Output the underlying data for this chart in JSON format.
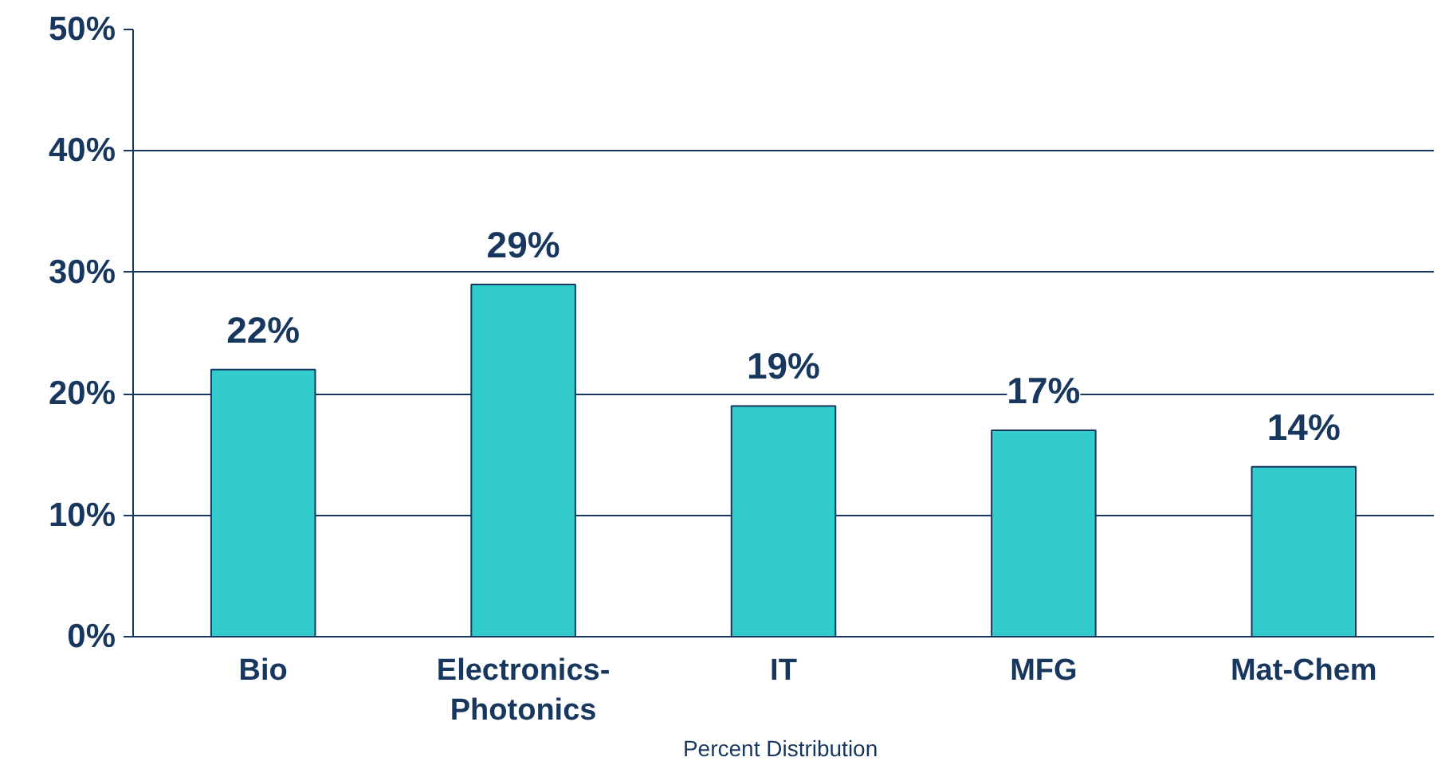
{
  "chart_data": {
    "type": "bar",
    "xlabel": "Percent  Distribution",
    "categories": [
      "Bio",
      "Electronics-Photonics",
      "IT",
      "MFG",
      "Mat-Chem"
    ],
    "values": [
      22,
      29,
      19,
      17,
      14
    ],
    "value_labels": [
      "22%",
      "29%",
      "19%",
      "17%",
      "14%"
    ],
    "color": "#33cccc",
    "ylim": [
      0,
      50
    ],
    "yticks": [
      {
        "value": 0,
        "label": "0%"
      },
      {
        "value": 10,
        "label": "10%"
      },
      {
        "value": 20,
        "label": "20%"
      },
      {
        "value": 30,
        "label": "30%"
      },
      {
        "value": 40,
        "label": "40%"
      },
      {
        "value": 50,
        "label": "50%"
      }
    ],
    "grid": "y"
  }
}
